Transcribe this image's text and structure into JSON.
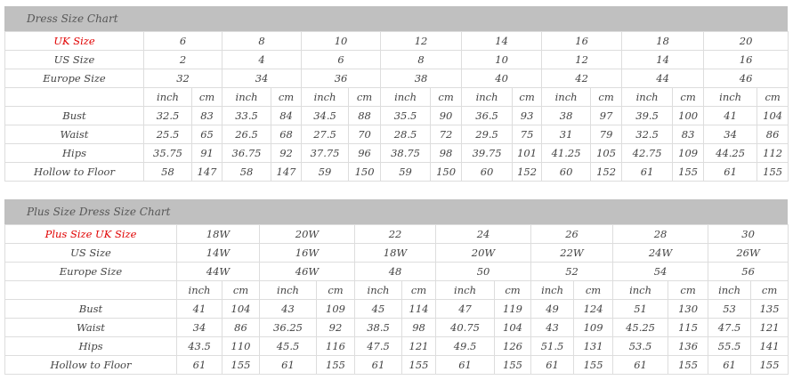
{
  "charts": [
    {
      "title": "Dress Size Chart",
      "size_rows": [
        {
          "label": "UK Size",
          "highlight": true,
          "values": [
            "6",
            "8",
            "10",
            "12",
            "14",
            "16",
            "18",
            "20"
          ]
        },
        {
          "label": "US Size",
          "values": [
            "2",
            "4",
            "6",
            "8",
            "10",
            "12",
            "14",
            "16"
          ]
        },
        {
          "label": "Europe Size",
          "values": [
            "32",
            "34",
            "36",
            "38",
            "40",
            "42",
            "44",
            "46"
          ]
        }
      ],
      "unit_labels": [
        "inch",
        "cm"
      ],
      "measure_rows": [
        {
          "label": "Bust",
          "values": [
            "32.5",
            "83",
            "33.5",
            "84",
            "34.5",
            "88",
            "35.5",
            "90",
            "36.5",
            "93",
            "38",
            "97",
            "39.5",
            "100",
            "41",
            "104"
          ]
        },
        {
          "label": "Waist",
          "values": [
            "25.5",
            "65",
            "26.5",
            "68",
            "27.5",
            "70",
            "28.5",
            "72",
            "29.5",
            "75",
            "31",
            "79",
            "32.5",
            "83",
            "34",
            "86"
          ]
        },
        {
          "label": "Hips",
          "values": [
            "35.75",
            "91",
            "36.75",
            "92",
            "37.75",
            "96",
            "38.75",
            "98",
            "39.75",
            "101",
            "41.25",
            "105",
            "42.75",
            "109",
            "44.25",
            "112"
          ]
        },
        {
          "label": "Hollow to Floor",
          "values": [
            "58",
            "147",
            "58",
            "147",
            "59",
            "150",
            "59",
            "150",
            "60",
            "152",
            "60",
            "152",
            "61",
            "155",
            "61",
            "155"
          ]
        }
      ]
    },
    {
      "title": "Plus Size Dress Size Chart",
      "size_rows": [
        {
          "label": "Plus Size UK Size",
          "highlight": true,
          "values": [
            "18W",
            "20W",
            "22",
            "24",
            "26",
            "28",
            "30"
          ]
        },
        {
          "label": "US Size",
          "values": [
            "14W",
            "16W",
            "18W",
            "20W",
            "22W",
            "24W",
            "26W"
          ]
        },
        {
          "label": "Europe Size",
          "values": [
            "44W",
            "46W",
            "48",
            "50",
            "52",
            "54",
            "56"
          ]
        }
      ],
      "unit_labels": [
        "inch",
        "cm"
      ],
      "measure_rows": [
        {
          "label": "Bust",
          "values": [
            "41",
            "104",
            "43",
            "109",
            "45",
            "114",
            "47",
            "119",
            "49",
            "124",
            "51",
            "130",
            "53",
            "135"
          ]
        },
        {
          "label": "Waist",
          "values": [
            "34",
            "86",
            "36.25",
            "92",
            "38.5",
            "98",
            "40.75",
            "104",
            "43",
            "109",
            "45.25",
            "115",
            "47.5",
            "121"
          ]
        },
        {
          "label": "Hips",
          "values": [
            "43.5",
            "110",
            "45.5",
            "116",
            "47.5",
            "121",
            "49.5",
            "126",
            "51.5",
            "131",
            "53.5",
            "136",
            "55.5",
            "141"
          ]
        },
        {
          "label": "Hollow to Floor",
          "values": [
            "61",
            "155",
            "61",
            "155",
            "61",
            "155",
            "61",
            "155",
            "61",
            "155",
            "61",
            "155",
            "61",
            "155"
          ]
        }
      ]
    }
  ],
  "colors": {
    "highlight": "#e00000",
    "header_bg": "#c0c0c0",
    "text": "#444444"
  }
}
